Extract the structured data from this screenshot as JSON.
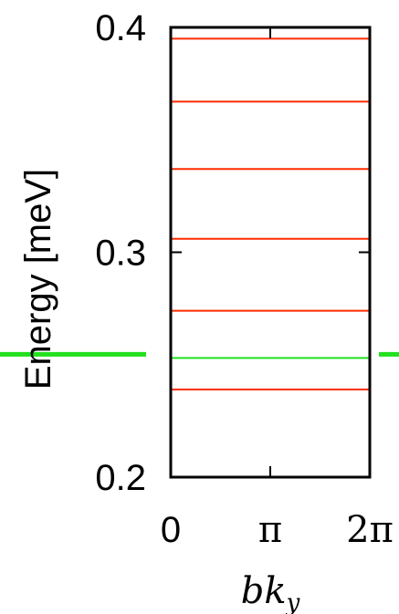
{
  "chart_data": {
    "type": "line",
    "title": "",
    "xlabel": "bk",
    "xlabel_subscript": "y",
    "ylabel": "Energy [meV]",
    "xlim": [
      0,
      6.283185
    ],
    "ylim": [
      0.2,
      0.4
    ],
    "x_ticks": [
      {
        "value": 0,
        "label": "0"
      },
      {
        "value": 3.141593,
        "label": "π"
      },
      {
        "value": 6.283185,
        "label": "2π"
      }
    ],
    "y_ticks": [
      {
        "value": 0.2,
        "label": "0.2"
      },
      {
        "value": 0.3,
        "label": "0.3"
      },
      {
        "value": 0.4,
        "label": "0.4"
      }
    ],
    "grid": false,
    "series": [
      {
        "color": "#ff2a00",
        "levels": [
          0.239,
          0.274,
          0.306,
          0.337,
          0.367,
          0.395
        ]
      },
      {
        "color": "#22e01e",
        "levels": [
          0.253
        ],
        "extends_outside_axes": true
      }
    ]
  }
}
